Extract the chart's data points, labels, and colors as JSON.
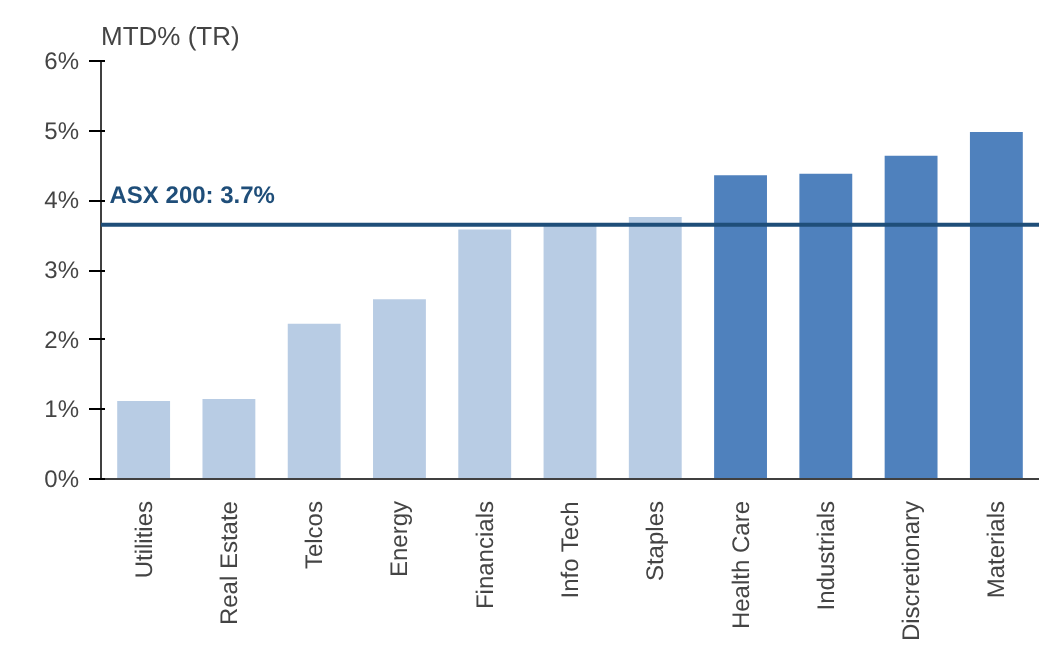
{
  "chart_data": {
    "type": "bar",
    "title": "MTD% (TR)",
    "categories": [
      "Utilities",
      "Real Estate",
      "Telcos",
      "Energy",
      "Financials",
      "Info Tech",
      "Staples",
      "Health Care",
      "Industrials",
      "Discretionary",
      "Materials"
    ],
    "values": [
      1.12,
      1.15,
      2.23,
      2.58,
      3.58,
      3.65,
      3.76,
      4.36,
      4.38,
      4.64,
      4.98
    ],
    "colors": [
      "#b8cce4",
      "#b8cce4",
      "#b8cce4",
      "#b8cce4",
      "#b8cce4",
      "#b8cce4",
      "#b8cce4",
      "#4f81bd",
      "#4f81bd",
      "#4f81bd",
      "#4f81bd"
    ],
    "ylim": [
      0,
      6
    ],
    "yticks": [
      {
        "value": 0,
        "label": "0%"
      },
      {
        "value": 1,
        "label": "1%"
      },
      {
        "value": 2,
        "label": "2%"
      },
      {
        "value": 3,
        "label": "3%"
      },
      {
        "value": 4,
        "label": "4%"
      },
      {
        "value": 5,
        "label": "5%"
      },
      {
        "value": 6,
        "label": "6%"
      }
    ],
    "ref_lines": [
      {
        "axis": "y",
        "value": 3.65,
        "label": "ASX 200: 3.7%",
        "color": "#1f4e79"
      }
    ],
    "grid": false
  }
}
